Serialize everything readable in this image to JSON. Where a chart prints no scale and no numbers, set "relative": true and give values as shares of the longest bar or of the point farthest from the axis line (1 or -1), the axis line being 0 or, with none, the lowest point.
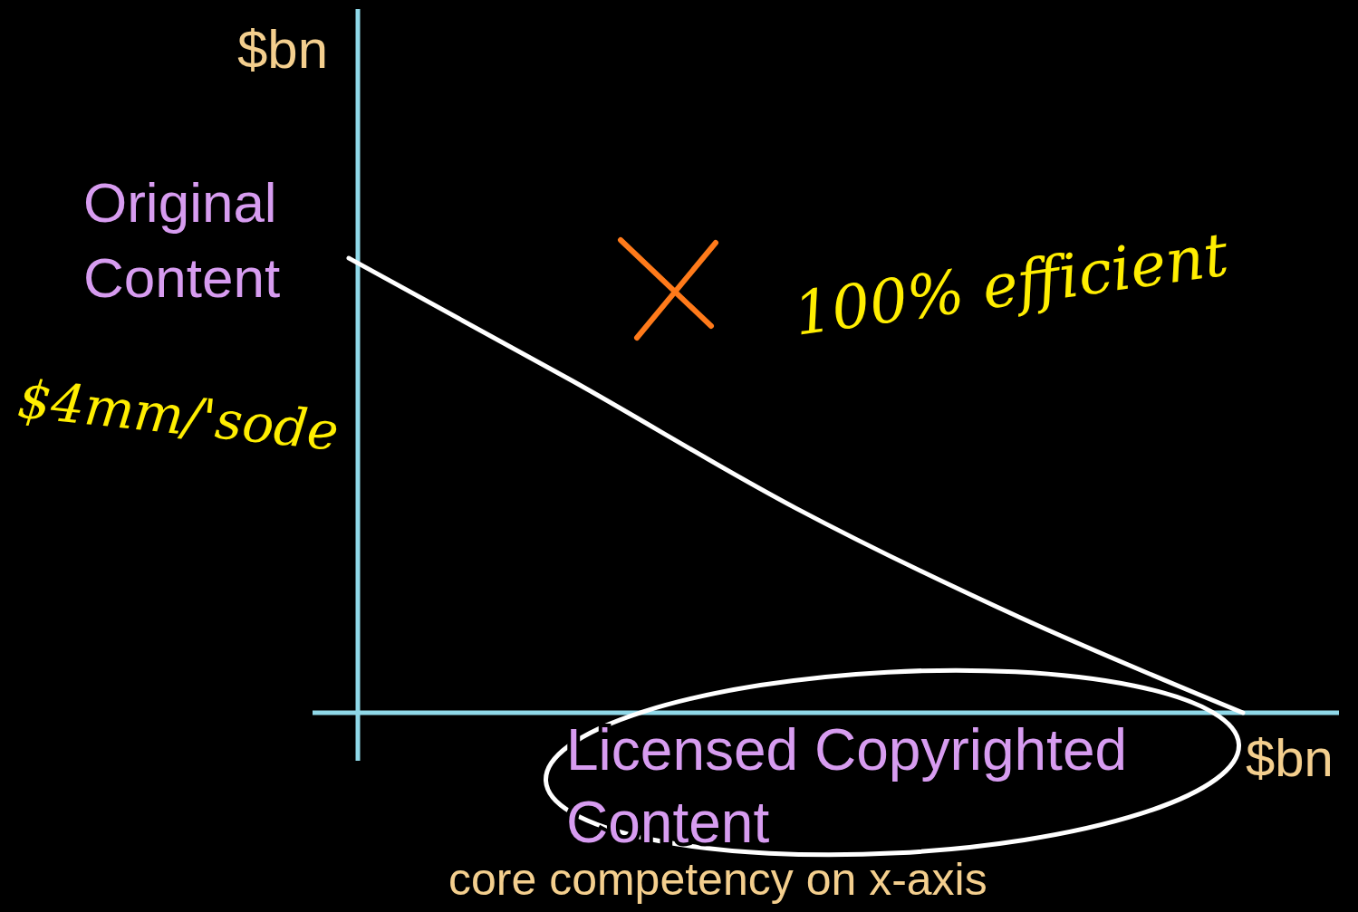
{
  "chart_data": {
    "type": "line",
    "relative": true,
    "ylabel": "Original Content",
    "xlabel": "Licensed Copyrighted Content",
    "categories": [
      null,
      null,
      null,
      null,
      null
    ],
    "values": [
      1,
      0.73,
      0.45,
      0.21,
      0
    ],
    "color": "#ffffff",
    "annotations": [
      "$bn",
      "$bn",
      "$4mm/'sode",
      "100% efficient",
      "core competency on x-axis"
    ]
  }
}
